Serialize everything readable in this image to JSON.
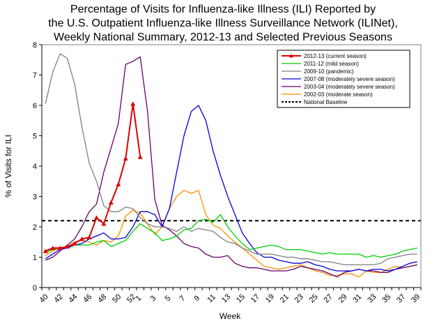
{
  "chart_data": {
    "type": "line",
    "title": [
      "Percentage of Visits for Influenza-like Illness (ILI) Reported by",
      "the U.S. Outpatient Influenza-like Illness Surveillance Network (ILINet),",
      "Weekly National Summary, 2012-13 and Selected Previous Seasons"
    ],
    "xlabel": "Week",
    "ylabel": "% of Visits for ILI",
    "ylim": [
      0,
      8
    ],
    "yticks": [
      "0",
      "1",
      "2",
      "3",
      "4",
      "5",
      "6",
      "7",
      "8"
    ],
    "x": [
      "40",
      "41",
      "42",
      "43",
      "44",
      "45",
      "46",
      "47",
      "48",
      "49",
      "50",
      "51",
      "52",
      "1",
      "2",
      "3",
      "4",
      "5",
      "6",
      "7",
      "8",
      "9",
      "10",
      "11",
      "12",
      "13",
      "14",
      "15",
      "16",
      "17",
      "18",
      "19",
      "20",
      "21",
      "22",
      "23",
      "24",
      "25",
      "26",
      "27",
      "28",
      "29",
      "30",
      "31",
      "32",
      "33",
      "34",
      "35",
      "36",
      "37",
      "38",
      "39"
    ],
    "xtick_labels": [
      "40",
      "42",
      "44",
      "46",
      "48",
      "50",
      "52",
      "1",
      "3",
      "5",
      "7",
      "9",
      "11",
      "13",
      "15",
      "17",
      "19",
      "21",
      "23",
      "25",
      "27",
      "29",
      "31",
      "33",
      "35",
      "37",
      "39"
    ],
    "legend_position": "top-right",
    "grid": false,
    "series": [
      {
        "name": "2002-03 (moderate season)",
        "color": "#ff8c00",
        "marker": "none",
        "values": [
          1.05,
          1.2,
          1.3,
          1.35,
          1.5,
          1.55,
          1.5,
          1.4,
          1.55,
          1.5,
          1.7,
          2.35,
          2.55,
          2.45,
          2.1,
          1.75,
          2.0,
          2.6,
          3.0,
          3.2,
          3.1,
          3.2,
          2.4,
          2.05,
          1.95,
          1.7,
          1.5,
          1.3,
          1.1,
          0.9,
          0.7,
          0.65,
          0.6,
          0.65,
          0.7,
          0.75,
          0.65,
          0.55,
          0.5,
          0.4,
          0.4,
          0.45,
          0.45,
          0.35,
          0.55,
          0.5,
          0.5,
          0.6,
          0.7,
          0.65,
          0.7,
          0.75
        ]
      },
      {
        "name": "2003-04 (moderately severe season)",
        "color": "#660066",
        "marker": "none",
        "values": [
          0.9,
          1.0,
          1.2,
          1.4,
          1.6,
          2.0,
          2.5,
          2.75,
          3.8,
          4.6,
          5.4,
          7.35,
          7.45,
          7.6,
          5.8,
          2.9,
          2.05,
          1.9,
          1.7,
          1.45,
          1.35,
          1.3,
          1.1,
          1.0,
          1.0,
          1.05,
          0.8,
          0.7,
          0.65,
          0.65,
          0.6,
          0.55,
          0.55,
          0.55,
          0.6,
          0.7,
          0.65,
          0.6,
          0.55,
          0.45,
          0.35,
          0.5,
          0.55,
          0.6,
          0.55,
          0.55,
          0.5,
          0.5,
          0.6,
          0.65,
          0.7,
          0.75
        ]
      },
      {
        "name": "2007-08 (moderately severe season)",
        "color": "#0000dd",
        "marker": "none",
        "values": [
          0.95,
          1.1,
          1.25,
          1.3,
          1.4,
          1.45,
          1.6,
          1.7,
          1.8,
          1.6,
          1.6,
          1.65,
          2.0,
          2.5,
          2.5,
          2.4,
          2.0,
          2.6,
          3.8,
          5.0,
          5.8,
          6.0,
          5.5,
          4.5,
          3.7,
          3.0,
          2.4,
          1.8,
          1.45,
          1.15,
          1.0,
          1.0,
          0.9,
          0.85,
          0.8,
          0.8,
          0.85,
          0.75,
          0.7,
          0.6,
          0.55,
          0.55,
          0.55,
          0.6,
          0.55,
          0.6,
          0.6,
          0.55,
          0.6,
          0.7,
          0.8,
          0.85
        ]
      },
      {
        "name": "2009-10 (pandemic)",
        "color": "#808080",
        "marker": "none",
        "values": [
          6.05,
          7.1,
          7.7,
          7.55,
          6.7,
          5.3,
          4.1,
          3.5,
          2.7,
          2.5,
          2.5,
          2.65,
          2.6,
          2.3,
          2.1,
          2.0,
          2.0,
          1.95,
          1.85,
          2.0,
          1.85,
          1.95,
          1.9,
          1.85,
          1.65,
          1.5,
          1.45,
          1.3,
          1.2,
          1.1,
          1.1,
          1.1,
          1.05,
          1.0,
          1.0,
          0.95,
          0.95,
          0.9,
          0.85,
          0.85,
          0.8,
          0.75,
          0.75,
          0.75,
          0.75,
          0.75,
          0.8,
          0.95,
          1.0,
          1.05,
          1.1,
          1.1
        ]
      },
      {
        "name": "2011-12 (mild season)",
        "color": "#00cc00",
        "marker": "none",
        "values": [
          1.15,
          1.25,
          1.3,
          1.35,
          1.4,
          1.4,
          1.4,
          1.5,
          1.55,
          1.35,
          1.45,
          1.55,
          1.85,
          2.1,
          1.95,
          1.8,
          1.55,
          1.6,
          1.7,
          1.9,
          1.95,
          2.2,
          2.25,
          2.15,
          2.4,
          2.0,
          1.7,
          1.45,
          1.25,
          1.3,
          1.35,
          1.4,
          1.35,
          1.25,
          1.25,
          1.25,
          1.2,
          1.15,
          1.1,
          1.15,
          1.1,
          1.1,
          1.1,
          1.1,
          1.0,
          1.05,
          1.0,
          1.05,
          1.1,
          1.2,
          1.25,
          1.3
        ]
      },
      {
        "name": "2012-13 (current season)",
        "color": "#dd0000",
        "marker": "triangle",
        "values": [
          1.2,
          1.3,
          1.3,
          1.35,
          1.45,
          1.6,
          1.65,
          2.3,
          2.1,
          2.8,
          3.4,
          4.25,
          6.05,
          4.3,
          null,
          null,
          null,
          null,
          null,
          null,
          null,
          null,
          null,
          null,
          null,
          null,
          null,
          null,
          null,
          null,
          null,
          null,
          null,
          null,
          null,
          null,
          null,
          null,
          null,
          null,
          null,
          null,
          null,
          null,
          null,
          null,
          null,
          null,
          null,
          null,
          null,
          null
        ]
      }
    ],
    "baseline": {
      "name": "National Baseline",
      "value": 2.2,
      "color": "#000000",
      "style": "dashed"
    },
    "legend_order": [
      "2012-13 (current season)",
      "2011-12 (mild season)",
      "2009-10 (pandemic)",
      "2007-08 (moderately severe season)",
      "2003-04 (moderately severe season)",
      "2002-03 (moderate season)",
      "National Baseline"
    ]
  }
}
